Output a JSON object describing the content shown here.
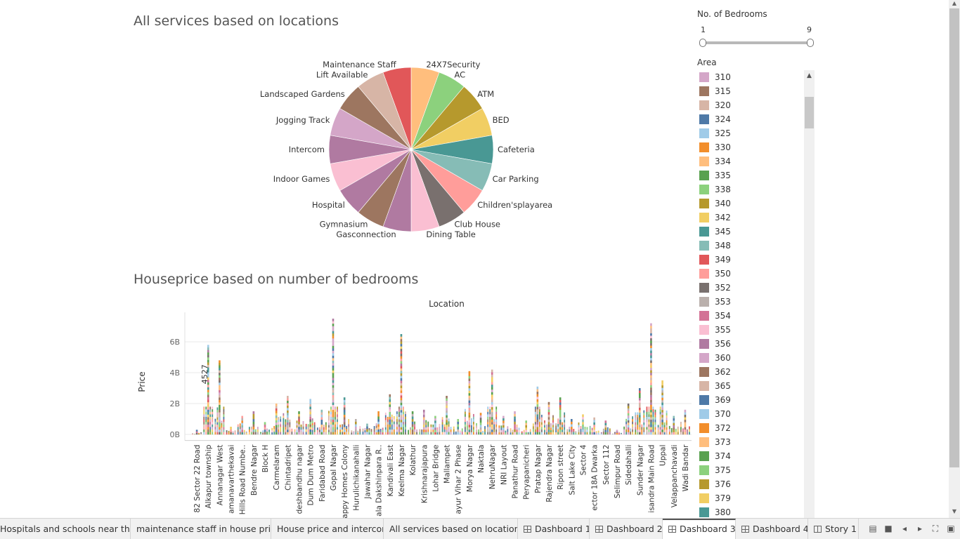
{
  "sheet1": {
    "title": "All services based on locations"
  },
  "sheet2": {
    "title": "Houseprice based on number of bedrooms"
  },
  "chart_data": [
    {
      "type": "pie",
      "title": "All services based on locations",
      "slices": [
        {
          "label": "24X7Security",
          "value": 1,
          "color": "#FFBE7D"
        },
        {
          "label": "AC",
          "value": 1,
          "color": "#8CD17D"
        },
        {
          "label": "ATM",
          "value": 1,
          "color": "#B6992D"
        },
        {
          "label": "BED",
          "value": 1,
          "color": "#F1CE63"
        },
        {
          "label": "Cafeteria",
          "value": 1,
          "color": "#499894"
        },
        {
          "label": "Car Parking",
          "value": 1,
          "color": "#86BCB6"
        },
        {
          "label": "Children'splayarea",
          "value": 1,
          "color": "#FF9D9A"
        },
        {
          "label": "Club House",
          "value": 1,
          "color": "#79706E"
        },
        {
          "label": "Dining Table",
          "value": 1,
          "color": "#FABFD2"
        },
        {
          "label": "Gasconnection",
          "value": 1,
          "color": "#B07AA1"
        },
        {
          "label": "Gymnasium",
          "value": 1,
          "color": "#9D7660"
        },
        {
          "label": "Hospital",
          "value": 1,
          "color": "#B07AA1"
        },
        {
          "label": "Indoor Games",
          "value": 1,
          "color": "#FABFD2"
        },
        {
          "label": "Intercom",
          "value": 1,
          "color": "#B07AA1"
        },
        {
          "label": "Jogging Track",
          "value": 1,
          "color": "#D4A6C8"
        },
        {
          "label": "Landscaped Gardens",
          "value": 1,
          "color": "#9D7660"
        },
        {
          "label": "Lift Available",
          "value": 1,
          "color": "#D7B5A6"
        },
        {
          "label": "Maintenance Staff",
          "value": 1,
          "color": "#E15759"
        }
      ]
    },
    {
      "type": "bar",
      "title": "Houseprice based on number of bedrooms",
      "xlabel": "Location",
      "ylabel": "Price",
      "ylim": [
        -0.3,
        7.5
      ],
      "yticks": [
        "0B",
        "2B",
        "4B",
        "6B"
      ],
      "ytick_values": [
        0,
        2,
        4,
        6
      ],
      "annotation": {
        "text": "4527",
        "category": "Alkapur township"
      },
      "categories": [
        "82 Sector 22 Road",
        "Alkapur township",
        "Annanagar West",
        "amanavarthekavai",
        "Hills Road Numbe..",
        "Bendre Nagar",
        "Block H",
        "Carmelaram",
        "Chintadripet",
        "deshbandhu nagar",
        "Dum Dum Metro",
        "Faridabad Road",
        "Gopal Nagar",
        "appy Homes Colony",
        "Hurulichikanahalli",
        "Jawahar Nagar",
        "ala Dakshinpara R..",
        "Kandivali East",
        "Keelma Nagar",
        "Kolathur",
        "Krishnarajapura",
        "Lohar Bridge",
        "Mallampet",
        "ayur Vihar 2 Phase",
        "Morya Nagar",
        "Naktala",
        "NehruNagar",
        "NRI Layout",
        "Panathur Road",
        "Peryapanicheri",
        "Pratap Nagar",
        "Rajendra Nagar",
        "Ripon street",
        "Salt Lake City",
        "Sector 4",
        "ector 18A Dwarka",
        "Sector 112",
        "Selimpur Road",
        "Sidedahalli",
        "Sunder Nagar",
        "isandra Main Road",
        "Uppal",
        "Velappanchavadi",
        "Wadi Bandar"
      ],
      "values": [
        0.3,
        5.8,
        4.8,
        0.5,
        1.2,
        1.5,
        0.8,
        2.0,
        2.5,
        1.5,
        2.3,
        1.6,
        7.5,
        2.4,
        1.0,
        0.7,
        1.5,
        2.6,
        6.5,
        1.5,
        1.6,
        1.2,
        2.5,
        1.0,
        4.1,
        1.4,
        4.2,
        1.2,
        1.5,
        0.9,
        3.1,
        2.1,
        2.4,
        1.0,
        1.3,
        1.1,
        0.9,
        0.3,
        2.0,
        3.0,
        7.2,
        3.5,
        1.2,
        1.6
      ]
    }
  ],
  "filters": {
    "bedrooms": {
      "title": "No. of Bedrooms",
      "min": "1",
      "max": "9"
    },
    "area": {
      "title": "Area",
      "items": [
        {
          "label": "310",
          "color": "#D4A6C8"
        },
        {
          "label": "315",
          "color": "#9D7660"
        },
        {
          "label": "320",
          "color": "#D7B5A6"
        },
        {
          "label": "324",
          "color": "#4E79A7"
        },
        {
          "label": "325",
          "color": "#A0CBE8"
        },
        {
          "label": "330",
          "color": "#F28E2B"
        },
        {
          "label": "334",
          "color": "#FFBE7D"
        },
        {
          "label": "335",
          "color": "#59A14F"
        },
        {
          "label": "338",
          "color": "#8CD17D"
        },
        {
          "label": "340",
          "color": "#B6992D"
        },
        {
          "label": "342",
          "color": "#F1CE63"
        },
        {
          "label": "345",
          "color": "#499894"
        },
        {
          "label": "348",
          "color": "#86BCB6"
        },
        {
          "label": "349",
          "color": "#E15759"
        },
        {
          "label": "350",
          "color": "#FF9D9A"
        },
        {
          "label": "352",
          "color": "#79706E"
        },
        {
          "label": "353",
          "color": "#BAB0AC"
        },
        {
          "label": "354",
          "color": "#D37295"
        },
        {
          "label": "355",
          "color": "#FABFD2"
        },
        {
          "label": "356",
          "color": "#B07AA1"
        },
        {
          "label": "360",
          "color": "#D4A6C8"
        },
        {
          "label": "362",
          "color": "#9D7660"
        },
        {
          "label": "365",
          "color": "#D7B5A6"
        },
        {
          "label": "369",
          "color": "#4E79A7"
        },
        {
          "label": "370",
          "color": "#A0CBE8"
        },
        {
          "label": "372",
          "color": "#F28E2B"
        },
        {
          "label": "373",
          "color": "#FFBE7D"
        },
        {
          "label": "374",
          "color": "#59A14F"
        },
        {
          "label": "375",
          "color": "#8CD17D"
        },
        {
          "label": "376",
          "color": "#B6992D"
        },
        {
          "label": "379",
          "color": "#F1CE63"
        },
        {
          "label": "380",
          "color": "#499894"
        }
      ]
    }
  },
  "tabs": [
    {
      "label": "Hospitals and schools near the h...",
      "icon": "none",
      "active": false
    },
    {
      "label": "maintenance staff in house prices",
      "icon": "none",
      "active": false
    },
    {
      "label": "House price and intercom",
      "icon": "none",
      "active": false
    },
    {
      "label": "All services based on locations",
      "icon": "none",
      "active": false
    },
    {
      "label": "Dashboard 1",
      "icon": "dashboard-icon",
      "active": false
    },
    {
      "label": "Dashboard 2",
      "icon": "dashboard-icon",
      "active": false
    },
    {
      "label": "Dashboard 3",
      "icon": "dashboard-icon",
      "active": true
    },
    {
      "label": "Dashboard 4",
      "icon": "dashboard-icon",
      "active": false
    },
    {
      "label": "Story 1",
      "icon": "story-icon",
      "active": false
    }
  ]
}
